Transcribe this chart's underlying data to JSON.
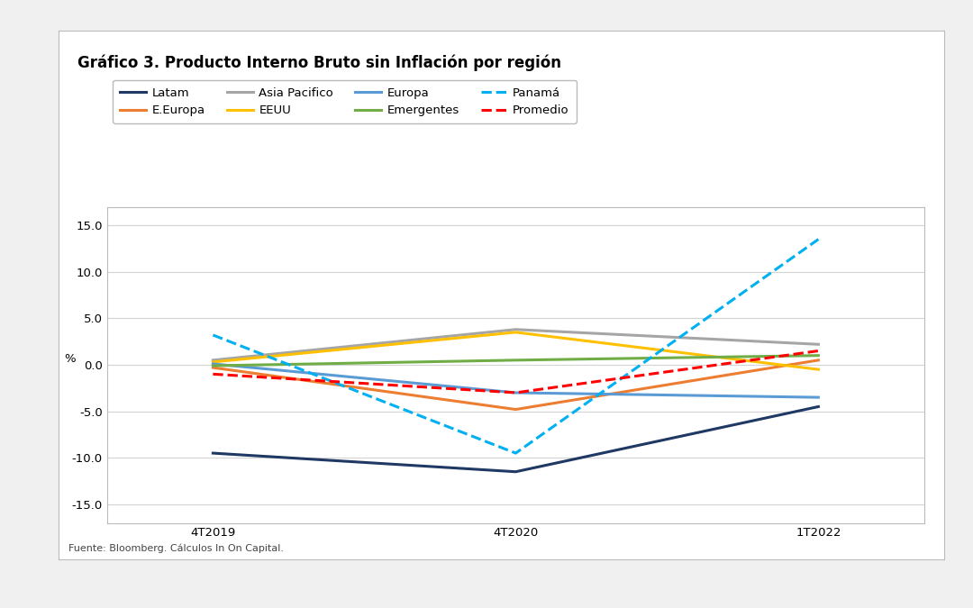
{
  "title": "Gráfico 3. Producto Interno Bruto sin Inflación por región",
  "footnote": "Fuente: Bloomberg. Cálculos In On Capital.",
  "ylabel": "%",
  "x_labels": [
    "4T2019",
    "4T2020",
    "1T2022"
  ],
  "x_positions": [
    0,
    1,
    2
  ],
  "ylim": [
    -17,
    17
  ],
  "yticks": [
    -15.0,
    -10.0,
    -5.0,
    0.0,
    5.0,
    10.0,
    15.0
  ],
  "series": [
    {
      "name": "Latam",
      "color": "#1F3864",
      "linestyle": "solid",
      "linewidth": 2.2,
      "values": [
        -9.5,
        -11.5,
        -4.5
      ]
    },
    {
      "name": "E.Europa",
      "color": "#ED7D31",
      "linestyle": "solid",
      "linewidth": 2.2,
      "values": [
        -0.3,
        -4.8,
        0.5
      ]
    },
    {
      "name": "Asia Pacifico",
      "color": "#A5A5A5",
      "linestyle": "solid",
      "linewidth": 2.2,
      "values": [
        0.5,
        3.8,
        2.2
      ]
    },
    {
      "name": "EEUU",
      "color": "#FFC000",
      "linestyle": "solid",
      "linewidth": 2.2,
      "values": [
        0.3,
        3.5,
        -0.5
      ]
    },
    {
      "name": "Europa",
      "color": "#5B9BD5",
      "linestyle": "solid",
      "linewidth": 2.2,
      "values": [
        0.1,
        -3.0,
        -3.5
      ]
    },
    {
      "name": "Emergentes",
      "color": "#70AD47",
      "linestyle": "solid",
      "linewidth": 2.2,
      "values": [
        -0.1,
        0.5,
        1.0
      ]
    },
    {
      "name": "Panamá",
      "color": "#00B0F0",
      "linestyle": "dashed",
      "linewidth": 2.2,
      "values": [
        3.2,
        -9.5,
        13.5
      ]
    },
    {
      "name": "Promedio",
      "color": "#FF0000",
      "linestyle": "dashed",
      "linewidth": 2.2,
      "values": [
        -1.0,
        -3.0,
        1.5
      ]
    }
  ],
  "background_color": "#F0F0F0",
  "plot_bg_color": "#FFFFFF",
  "chart_border_color": "#BBBBBB",
  "grid_color": "#D3D3D3",
  "title_fontsize": 12,
  "axis_fontsize": 9.5,
  "legend_fontsize": 9.5,
  "footnote_fontsize": 8
}
